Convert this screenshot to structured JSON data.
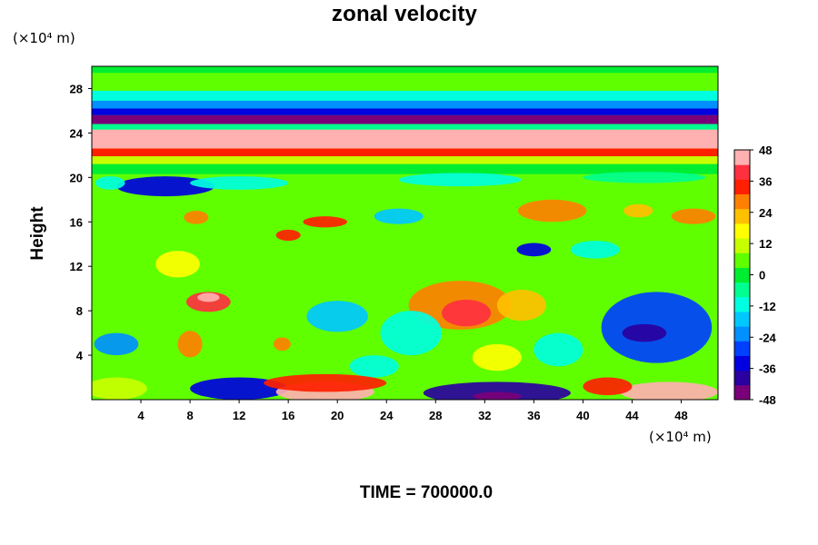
{
  "chart_data": {
    "type": "heatmap",
    "title": "zonal velocity",
    "ylabel": "Height",
    "xlabel": "",
    "x_unit": "(×10⁴ m)",
    "y_unit": "(×10⁴ m)",
    "footer": "TIME = 700000.0",
    "xlim": [
      0,
      51
    ],
    "ylim": [
      0,
      30
    ],
    "x_ticks": [
      "4",
      "8",
      "12",
      "16",
      "20",
      "24",
      "28",
      "32",
      "36",
      "40",
      "44",
      "48"
    ],
    "y_ticks": [
      "4",
      "8",
      "12",
      "16",
      "20",
      "24",
      "28"
    ],
    "colorbar": {
      "min": -48,
      "max": 48,
      "ticks": [
        "48",
        "36",
        "24",
        "12",
        "0",
        "-12",
        "-24",
        "-36",
        "-48"
      ]
    },
    "colormap": {
      "stops": [
        {
          "value": -48,
          "color": "#7a007a"
        },
        {
          "value": -42,
          "color": "#2a00a0"
        },
        {
          "value": -36,
          "color": "#0000e0"
        },
        {
          "value": -30,
          "color": "#0040ff"
        },
        {
          "value": -24,
          "color": "#0090ff"
        },
        {
          "value": -18,
          "color": "#00c8ff"
        },
        {
          "value": -12,
          "color": "#00ffe0"
        },
        {
          "value": -6,
          "color": "#00ff90"
        },
        {
          "value": 0,
          "color": "#00ee30"
        },
        {
          "value": 6,
          "color": "#60ff00"
        },
        {
          "value": 12,
          "color": "#c8ff00"
        },
        {
          "value": 18,
          "color": "#ffff00"
        },
        {
          "value": 24,
          "color": "#ffc000"
        },
        {
          "value": 30,
          "color": "#ff8000"
        },
        {
          "value": 36,
          "color": "#ff2000"
        },
        {
          "value": 42,
          "color": "#ff3040"
        },
        {
          "value": 48,
          "color": "#ffb0b0"
        }
      ]
    },
    "bands": [
      {
        "y": [
          29.4,
          30.0
        ],
        "value": -2
      },
      {
        "y": [
          27.8,
          29.4
        ],
        "value": 4
      },
      {
        "y": [
          26.9,
          27.8
        ],
        "value": -10
      },
      {
        "y": [
          26.2,
          26.9
        ],
        "value": -22
      },
      {
        "y": [
          25.6,
          26.2
        ],
        "value": -38
      },
      {
        "y": [
          24.8,
          25.6
        ],
        "value": -46
      },
      {
        "y": [
          24.3,
          24.8
        ],
        "value": -8
      },
      {
        "y": [
          22.6,
          24.3
        ],
        "value": 48
      },
      {
        "y": [
          21.9,
          22.6
        ],
        "value": 36
      },
      {
        "y": [
          21.2,
          21.9
        ],
        "value": 14
      },
      {
        "y": [
          20.3,
          21.2
        ],
        "value": 2
      }
    ],
    "background_value": 4,
    "features": [
      {
        "x": 6,
        "y": 19.2,
        "rx": 4,
        "ry": 0.9,
        "value": -34
      },
      {
        "x": 1.5,
        "y": 19.5,
        "rx": 1.2,
        "ry": 0.6,
        "value": -14
      },
      {
        "x": 12,
        "y": 19.5,
        "rx": 4,
        "ry": 0.6,
        "value": -14
      },
      {
        "x": 30,
        "y": 19.8,
        "rx": 5,
        "ry": 0.6,
        "value": -10
      },
      {
        "x": 45,
        "y": 20.0,
        "rx": 5,
        "ry": 0.5,
        "value": -8
      },
      {
        "x": 37.5,
        "y": 17.0,
        "rx": 2.8,
        "ry": 1.0,
        "value": 32
      },
      {
        "x": 49,
        "y": 16.5,
        "rx": 1.8,
        "ry": 0.7,
        "value": 32
      },
      {
        "x": 44.5,
        "y": 17.0,
        "rx": 1.2,
        "ry": 0.6,
        "value": 24
      },
      {
        "x": 8.5,
        "y": 16.4,
        "rx": 1.0,
        "ry": 0.6,
        "value": 30
      },
      {
        "x": 19,
        "y": 16.0,
        "rx": 1.8,
        "ry": 0.5,
        "value": 36
      },
      {
        "x": 16,
        "y": 14.8,
        "rx": 1.0,
        "ry": 0.5,
        "value": 36
      },
      {
        "x": 25,
        "y": 16.5,
        "rx": 2,
        "ry": 0.7,
        "value": -16
      },
      {
        "x": 36,
        "y": 13.5,
        "rx": 1.4,
        "ry": 0.6,
        "value": -34
      },
      {
        "x": 41,
        "y": 13.5,
        "rx": 2,
        "ry": 0.8,
        "value": -14
      },
      {
        "x": 7,
        "y": 12.2,
        "rx": 1.8,
        "ry": 1.2,
        "value": 18
      },
      {
        "x": 30,
        "y": 8.5,
        "rx": 4.2,
        "ry": 2.2,
        "value": 30
      },
      {
        "x": 30.5,
        "y": 7.8,
        "rx": 2,
        "ry": 1.2,
        "value": 42
      },
      {
        "x": 35,
        "y": 8.5,
        "rx": 2,
        "ry": 1.4,
        "value": 24
      },
      {
        "x": 9.5,
        "y": 8.8,
        "rx": 1.8,
        "ry": 0.9,
        "value": 40
      },
      {
        "x": 9.5,
        "y": 9.2,
        "rx": 0.9,
        "ry": 0.4,
        "value": 48
      },
      {
        "x": 8,
        "y": 5.0,
        "rx": 1.0,
        "ry": 1.2,
        "value": 30
      },
      {
        "x": 15.5,
        "y": 5.0,
        "rx": 0.7,
        "ry": 0.6,
        "value": 30
      },
      {
        "x": 46,
        "y": 6.5,
        "rx": 4.5,
        "ry": 3.2,
        "value": -32
      },
      {
        "x": 45,
        "y": 6.0,
        "rx": 1.8,
        "ry": 0.8,
        "value": -44
      },
      {
        "x": 20,
        "y": 7.5,
        "rx": 2.5,
        "ry": 1.4,
        "value": -18
      },
      {
        "x": 2,
        "y": 5.0,
        "rx": 1.8,
        "ry": 1.0,
        "value": -22
      },
      {
        "x": 23,
        "y": 3.0,
        "rx": 2,
        "ry": 1.0,
        "value": -14
      },
      {
        "x": 33,
        "y": 3.8,
        "rx": 2,
        "ry": 1.2,
        "value": 18
      },
      {
        "x": 12,
        "y": 1.0,
        "rx": 4,
        "ry": 1.0,
        "value": -36
      },
      {
        "x": 19,
        "y": 0.7,
        "rx": 4,
        "ry": 0.9,
        "value": 48
      },
      {
        "x": 19,
        "y": 1.5,
        "rx": 5,
        "ry": 0.8,
        "value": 36
      },
      {
        "x": 33,
        "y": 0.6,
        "rx": 6,
        "ry": 1.0,
        "value": -40
      },
      {
        "x": 33,
        "y": 0.3,
        "rx": 2,
        "ry": 0.4,
        "value": -48
      },
      {
        "x": 47,
        "y": 0.7,
        "rx": 4,
        "ry": 0.9,
        "value": 48
      },
      {
        "x": 42,
        "y": 1.2,
        "rx": 2,
        "ry": 0.8,
        "value": 34
      },
      {
        "x": 2,
        "y": 1.0,
        "rx": 2.5,
        "ry": 1.0,
        "value": 10
      },
      {
        "x": 26,
        "y": 6.0,
        "rx": 2.5,
        "ry": 2.0,
        "value": -12
      },
      {
        "x": 38,
        "y": 4.5,
        "rx": 2,
        "ry": 1.5,
        "value": -12
      }
    ]
  }
}
